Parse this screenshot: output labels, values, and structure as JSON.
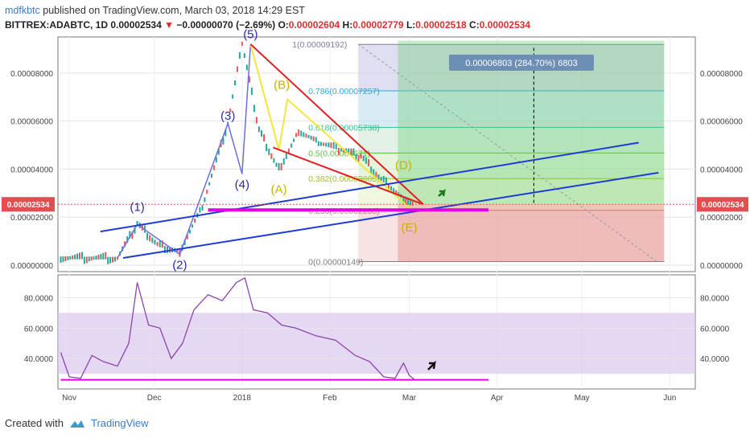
{
  "header": {
    "user": "mdfkbtc",
    "published_text": "published on TradingView.com, March 03, 2018 14:29 EST",
    "symbol": "BITTREX:ADABTC, 1D",
    "last": "0.00002534",
    "change_arrow": "▼",
    "change": "−0.00000070 (−2.69%)",
    "o_label": "O:",
    "o_value": "0.00002604",
    "h_label": "H:",
    "h_value": "0.00002779",
    "l_label": "L:",
    "l_value": "0.00002518",
    "c_label": "C:",
    "c_value": "0.00002534"
  },
  "footer": {
    "created_with": "Created with",
    "brand": "TradingView"
  },
  "colors": {
    "up": "#26a69a",
    "down": "#ef5350",
    "blue_line": "#1f3bd6",
    "red_line": "#e02020",
    "yellow": "#f5e63b",
    "magenta": "#e000e0",
    "rsi": "#8e44ad",
    "fib_box": "#7f7f8f"
  },
  "chart_data": {
    "type": "candlestick",
    "x_ticks": [
      "Nov",
      "Dec",
      "2018",
      "Feb",
      "Mar",
      "Apr",
      "May",
      "Jun"
    ],
    "y_ticks": [
      "0.00008000",
      "0.00006000",
      "0.00004000",
      "0.00002000",
      "0.00000000"
    ],
    "price_ylim": [
      0,
      9.5e-05
    ],
    "last_price_label": "0.00002534",
    "price_path": [
      [
        "2017-10-29",
        3.1e-06
      ],
      [
        "2017-11-08",
        3e-06
      ],
      [
        "2017-11-18",
        2.9e-06
      ],
      [
        "2017-11-25",
        1.7e-05
      ],
      [
        "2017-12-03",
        8e-06
      ],
      [
        "2017-12-10",
        6e-06
      ],
      [
        "2017-12-18",
        2.45e-05
      ],
      [
        "2017-12-27",
        5.9e-05
      ],
      [
        "2018-01-01",
        9.2e-05
      ],
      [
        "2018-01-07",
        5.6e-05
      ],
      [
        "2018-01-14",
        4e-05
      ],
      [
        "2018-01-21",
        5.6e-05
      ],
      [
        "2018-01-28",
        5.1e-05
      ],
      [
        "2018-02-05",
        4.8e-05
      ],
      [
        "2018-02-12",
        4.5e-05
      ],
      [
        "2018-02-20",
        3.5e-05
      ],
      [
        "2018-02-27",
        2.8e-05
      ],
      [
        "2018-03-03",
        2.53e-05
      ]
    ],
    "elliott_labels": [
      {
        "label": "(1)",
        "date": "2017-11-25",
        "price": 2.25e-05
      },
      {
        "label": "(2)",
        "date": "2017-12-10",
        "price": -1.5e-06
      },
      {
        "label": "(3)",
        "date": "2017-12-27",
        "price": 6.05e-05
      },
      {
        "label": "(4)",
        "date": "2018-01-01",
        "price": 3.2e-05
      },
      {
        "label": "(5)",
        "date": "2018-01-04",
        "price": 9.45e-05
      },
      {
        "label": "(A)",
        "date": "2018-01-14",
        "price": 3e-05
      },
      {
        "label": "(B)",
        "date": "2018-01-15",
        "price": 7.35e-05
      },
      {
        "label": "(D)",
        "date": "2018-02-27",
        "price": 4e-05
      },
      {
        "label": "(E)",
        "date": "2018-03-01",
        "price": 1.4e-05
      }
    ],
    "fib_levels": [
      {
        "label": "1(0.00009192)",
        "price": 9.192e-05
      },
      {
        "label": "0.786(0.00007257)",
        "price": 7.257e-05
      },
      {
        "label": "0.618(0.00005738)",
        "price": 5.738e-05
      },
      {
        "label": "0.5(0.00004671)",
        "price": 4.671e-05
      },
      {
        "label": "0.382(0.00003605)",
        "price": 3.605e-05
      },
      {
        "label": "0.236(0.00002283)",
        "price": 2.283e-05
      },
      {
        "label": "0(0.00000149)",
        "price": 1.49e-06
      }
    ],
    "measure_label": "0.00006803 (284.70%) 6803",
    "rsi": {
      "y_ticks": [
        "80.0000",
        "60.0000",
        "40.0000"
      ],
      "ylim": [
        20,
        95
      ],
      "band": [
        30,
        70
      ],
      "values": [
        [
          "2017-10-29",
          44
        ],
        [
          "2017-11-01",
          28
        ],
        [
          "2017-11-05",
          27
        ],
        [
          "2017-11-09",
          42
        ],
        [
          "2017-11-13",
          38
        ],
        [
          "2017-11-18",
          35
        ],
        [
          "2017-11-22",
          50
        ],
        [
          "2017-11-25",
          90
        ],
        [
          "2017-11-29",
          62
        ],
        [
          "2017-12-03",
          60
        ],
        [
          "2017-12-07",
          40
        ],
        [
          "2017-12-11",
          50
        ],
        [
          "2017-12-15",
          72
        ],
        [
          "2017-12-20",
          82
        ],
        [
          "2017-12-25",
          78
        ],
        [
          "2017-12-30",
          90
        ],
        [
          "2018-01-02",
          93
        ],
        [
          "2018-01-05",
          72
        ],
        [
          "2018-01-10",
          70
        ],
        [
          "2018-01-15",
          62
        ],
        [
          "2018-01-20",
          60
        ],
        [
          "2018-01-27",
          55
        ],
        [
          "2018-02-03",
          52
        ],
        [
          "2018-02-10",
          42
        ],
        [
          "2018-02-15",
          38
        ],
        [
          "2018-02-20",
          28
        ],
        [
          "2018-02-24",
          27
        ],
        [
          "2018-02-27",
          37
        ],
        [
          "2018-03-01",
          29
        ],
        [
          "2018-03-03",
          26
        ]
      ],
      "support": 26
    }
  }
}
